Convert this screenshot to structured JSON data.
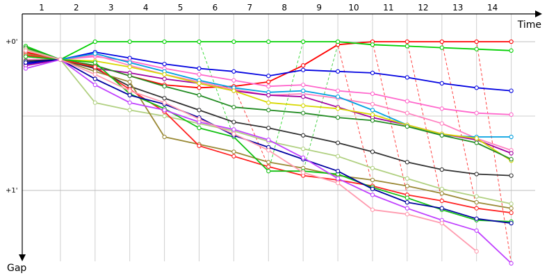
{
  "chart_data": {
    "type": "line",
    "title": "",
    "xlabel": "Time",
    "ylabel": "Gap",
    "x_tick_labels": [
      "1",
      "2",
      "3",
      "4",
      "5",
      "6",
      "7",
      "8",
      "9",
      "10",
      "11",
      "12",
      "13",
      "14"
    ],
    "y_tick_labels": [
      "+0'",
      "+1'"
    ],
    "y_reversed": true,
    "ylim": [
      -0.12,
      1.48
    ],
    "grid": true,
    "legend": "none",
    "series": [
      {
        "color": "#ff0000",
        "values": [
          0.07,
          0.12,
          0.16,
          0.23,
          0.29,
          0.31,
          0.3,
          0.27,
          0.16,
          0.02,
          0.0,
          0.0,
          0.0,
          0.0,
          0.0
        ]
      },
      {
        "color": "#00d000",
        "values": [
          0.03,
          0.12,
          0.0,
          0.0,
          0.0,
          0.0,
          0.0,
          0.0,
          0.0,
          0.0,
          0.02,
          0.03,
          0.04,
          0.05,
          0.06
        ]
      },
      {
        "color": "#0000e0",
        "values": [
          0.15,
          0.12,
          0.07,
          0.11,
          0.15,
          0.18,
          0.2,
          0.23,
          0.19,
          0.2,
          0.21,
          0.24,
          0.28,
          0.31,
          0.33
        ]
      },
      {
        "color": "#ff66cc",
        "values": [
          0.1,
          0.12,
          0.1,
          0.13,
          0.18,
          0.22,
          0.26,
          0.3,
          0.29,
          0.33,
          0.35,
          0.4,
          0.45,
          0.48,
          0.49
        ]
      },
      {
        "color": "#ff7fbf",
        "values": [
          0.12,
          0.12,
          0.09,
          0.16,
          0.22,
          0.27,
          0.32,
          0.36,
          0.35,
          0.38,
          0.42,
          0.48,
          0.55,
          0.65,
          0.73
        ]
      },
      {
        "color": "#00a0e0",
        "values": [
          0.13,
          0.12,
          0.08,
          0.14,
          0.2,
          0.26,
          0.31,
          0.34,
          0.33,
          0.37,
          0.46,
          0.56,
          0.63,
          0.64,
          0.64
        ]
      },
      {
        "color": "#a000a0",
        "values": [
          0.16,
          0.12,
          0.18,
          0.21,
          0.25,
          0.28,
          0.33,
          0.36,
          0.37,
          0.44,
          0.51,
          0.56,
          0.62,
          0.66,
          0.75
        ]
      },
      {
        "color": "#d8d800",
        "values": [
          0.1,
          0.12,
          0.13,
          0.17,
          0.22,
          0.28,
          0.33,
          0.41,
          0.43,
          0.45,
          0.49,
          0.56,
          0.62,
          0.65,
          0.8
        ]
      },
      {
        "color": "#228b22",
        "values": [
          0.04,
          0.12,
          0.16,
          0.23,
          0.3,
          0.36,
          0.44,
          0.46,
          0.48,
          0.51,
          0.53,
          0.57,
          0.63,
          0.68,
          0.79
        ]
      },
      {
        "color": "#303030",
        "values": [
          0.13,
          0.12,
          0.18,
          0.3,
          0.38,
          0.46,
          0.54,
          0.58,
          0.63,
          0.68,
          0.74,
          0.81,
          0.86,
          0.89,
          0.9
        ]
      },
      {
        "color": "#b0d080",
        "values": [
          0.05,
          0.12,
          0.41,
          0.46,
          0.5,
          0.55,
          0.6,
          0.67,
          0.72,
          0.77,
          0.85,
          0.92,
          0.99,
          1.04,
          1.09
        ]
      },
      {
        "color": "#998833",
        "values": [
          0.08,
          0.12,
          0.2,
          0.27,
          0.64,
          0.69,
          0.74,
          0.81,
          0.85,
          0.9,
          0.93,
          0.97,
          1.02,
          1.08,
          1.12
        ]
      },
      {
        "color": "#ff2020",
        "values": [
          0.09,
          0.12,
          0.17,
          0.32,
          0.47,
          0.7,
          0.77,
          0.84,
          0.9,
          0.93,
          0.97,
          1.03,
          1.07,
          1.12,
          1.15
        ]
      },
      {
        "color": "#10c010",
        "values": [
          0.1,
          0.12,
          0.14,
          0.35,
          0.45,
          0.58,
          0.64,
          0.87,
          0.87,
          0.89,
          0.98,
          1.05,
          1.13,
          1.2,
          1.21
        ]
      },
      {
        "color": "#0000a0",
        "values": [
          0.14,
          0.12,
          0.25,
          0.36,
          0.42,
          0.51,
          0.63,
          0.71,
          0.79,
          0.87,
          0.99,
          1.08,
          1.12,
          1.19,
          1.22
        ]
      },
      {
        "color": "#c040ff",
        "values": [
          0.18,
          0.12,
          0.29,
          0.41,
          0.46,
          0.54,
          0.59,
          0.66,
          0.78,
          0.92,
          1.03,
          1.12,
          1.2,
          1.27,
          1.49
        ]
      },
      {
        "color": "#ff9aae",
        "values": [
          0.06,
          0.12,
          0.22,
          0.33,
          0.41,
          0.52,
          0.62,
          0.73,
          0.88,
          0.95,
          1.13,
          1.16,
          1.22,
          1.41,
          null
        ]
      }
    ],
    "pit_stops": [
      {
        "color": "#00d000",
        "from": [
          3,
          0.41
        ],
        "to": [
          2,
          0.12
        ]
      },
      {
        "color": "#00d000",
        "from": [
          7,
          0.64
        ],
        "to": [
          6,
          0.0
        ]
      },
      {
        "color": "#ff0000",
        "from": [
          8,
          0.84
        ],
        "to": [
          7,
          0.3
        ]
      },
      {
        "color": "#00d000",
        "from": [
          9,
          0.0
        ],
        "to": [
          8,
          0.87
        ]
      },
      {
        "color": "#10c010",
        "from": [
          10,
          0.02
        ],
        "to": [
          9,
          0.87
        ]
      },
      {
        "color": "#ff0000",
        "from": [
          11,
          0.97
        ],
        "to": [
          10,
          0.02
        ]
      },
      {
        "color": "#ff0000",
        "from": [
          12,
          1.03
        ],
        "to": [
          11,
          0.0
        ]
      },
      {
        "color": "#ff0000",
        "from": [
          13,
          1.07
        ],
        "to": [
          12,
          0.0
        ]
      },
      {
        "color": "#ff0000",
        "from": [
          14,
          1.12
        ],
        "to": [
          13,
          0.0
        ]
      },
      {
        "color": "#ff0000",
        "from": [
          15,
          1.49
        ],
        "to": [
          14,
          0.0
        ]
      }
    ]
  }
}
